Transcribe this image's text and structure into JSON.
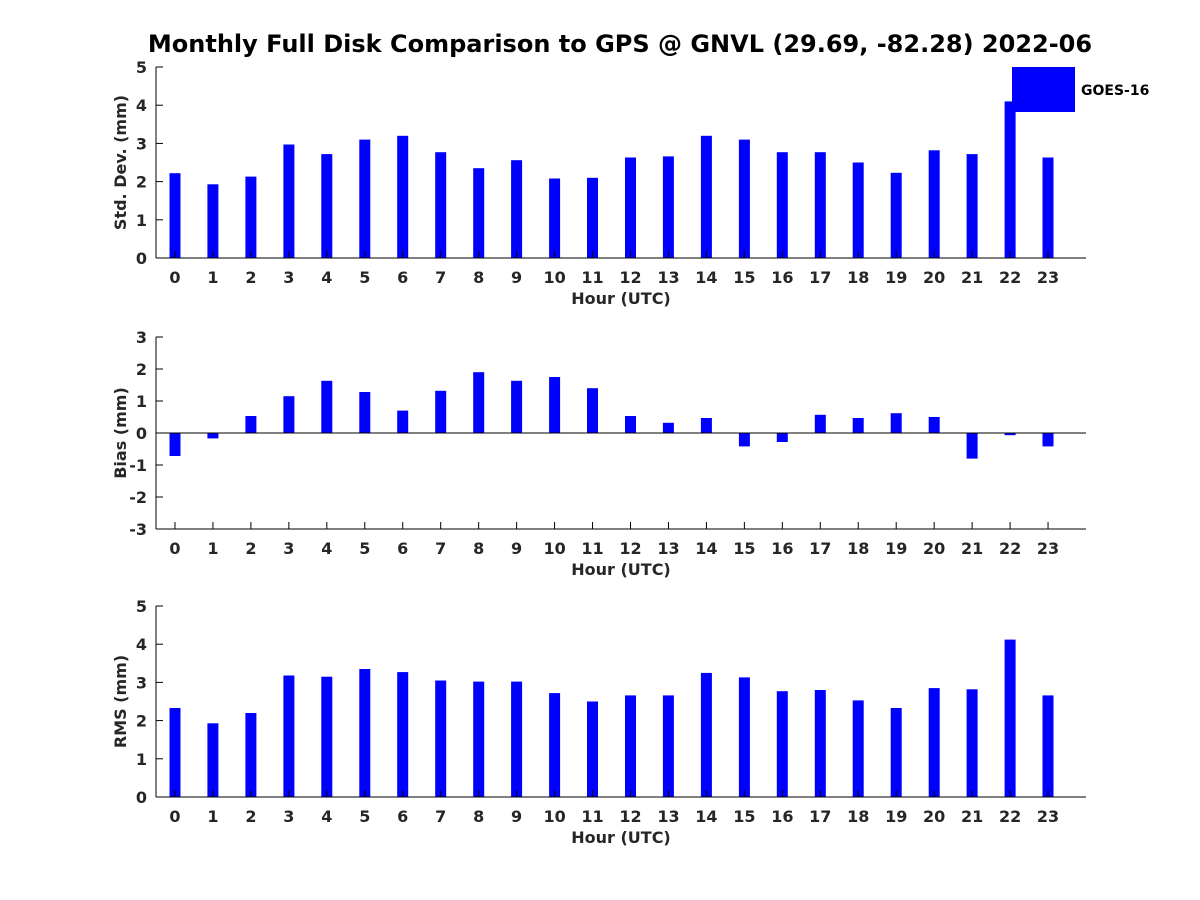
{
  "title": "Monthly Full Disk Comparison to GPS @ GNVL (29.69, -82.28) 2022-06",
  "colors": {
    "bar": "#0000ff",
    "axis": "#000000",
    "text": "#262626"
  },
  "legend": {
    "label": "GOES-16",
    "placement": "top-right"
  },
  "chart_data": [
    {
      "type": "bar",
      "xlabel": "Hour (UTC)",
      "ylabel": "Std. Dev. (mm)",
      "ylim": [
        0,
        5
      ],
      "yticks": [
        0,
        1,
        2,
        3,
        4,
        5
      ],
      "categories": [
        "0",
        "1",
        "2",
        "3",
        "4",
        "5",
        "6",
        "7",
        "8",
        "9",
        "10",
        "11",
        "12",
        "13",
        "14",
        "15",
        "16",
        "17",
        "18",
        "19",
        "20",
        "21",
        "22",
        "23"
      ],
      "series": [
        {
          "name": "GOES-16",
          "values": [
            2.22,
            1.93,
            2.13,
            2.97,
            2.72,
            3.1,
            3.2,
            2.77,
            2.35,
            2.56,
            2.08,
            2.1,
            2.63,
            2.66,
            3.2,
            3.1,
            2.77,
            2.77,
            2.5,
            2.23,
            2.82,
            2.72,
            4.1,
            2.63
          ]
        }
      ]
    },
    {
      "type": "bar",
      "xlabel": "Hour (UTC)",
      "ylabel": "Bias (mm)",
      "ylim": [
        -3,
        3
      ],
      "yticks": [
        -3,
        -2,
        -1,
        0,
        1,
        2,
        3
      ],
      "categories": [
        "0",
        "1",
        "2",
        "3",
        "4",
        "5",
        "6",
        "7",
        "8",
        "9",
        "10",
        "11",
        "12",
        "13",
        "14",
        "15",
        "16",
        "17",
        "18",
        "19",
        "20",
        "21",
        "22",
        "23"
      ],
      "series": [
        {
          "name": "GOES-16",
          "values": [
            -0.72,
            -0.17,
            0.53,
            1.15,
            1.63,
            1.28,
            0.7,
            1.32,
            1.9,
            1.63,
            1.75,
            1.4,
            0.53,
            0.32,
            0.47,
            -0.42,
            -0.28,
            0.57,
            0.47,
            0.62,
            0.5,
            -0.8,
            -0.07,
            -0.42
          ]
        }
      ]
    },
    {
      "type": "bar",
      "xlabel": "Hour (UTC)",
      "ylabel": "RMS (mm)",
      "ylim": [
        0,
        5
      ],
      "yticks": [
        0,
        1,
        2,
        3,
        4,
        5
      ],
      "categories": [
        "0",
        "1",
        "2",
        "3",
        "4",
        "5",
        "6",
        "7",
        "8",
        "9",
        "10",
        "11",
        "12",
        "13",
        "14",
        "15",
        "16",
        "17",
        "18",
        "19",
        "20",
        "21",
        "22",
        "23"
      ],
      "series": [
        {
          "name": "GOES-16",
          "values": [
            2.33,
            1.93,
            2.2,
            3.18,
            3.15,
            3.35,
            3.27,
            3.05,
            3.02,
            3.02,
            2.72,
            2.5,
            2.66,
            2.66,
            3.25,
            3.13,
            2.77,
            2.8,
            2.53,
            2.33,
            2.85,
            2.82,
            4.12,
            2.66
          ]
        }
      ]
    }
  ]
}
